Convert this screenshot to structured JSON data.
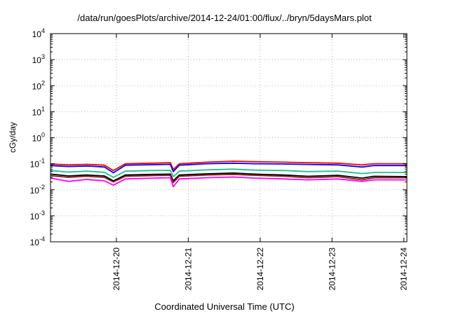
{
  "chart_data": {
    "type": "line",
    "title": "/data/run/goesPlots/archive/2014-12-24/01:00/flux/../bryn/5daysMars.plot",
    "xlabel": "Coordinated Universal Time (UTC)",
    "ylabel": "cGy/day",
    "yscale": "log",
    "ylim": [
      0.0001,
      10000
    ],
    "xlim": [
      "2014-12-19 02:00",
      "2014-12-24 01:00"
    ],
    "y_ticks": [
      {
        "mant": "10",
        "exp": "-4",
        "value": 0.0001
      },
      {
        "mant": "10",
        "exp": "-3",
        "value": 0.001
      },
      {
        "mant": "10",
        "exp": "-2",
        "value": 0.01
      },
      {
        "mant": "10",
        "exp": "-1",
        "value": 0.1
      },
      {
        "mant": "10",
        "exp": "0",
        "value": 1
      },
      {
        "mant": "10",
        "exp": "1",
        "value": 10
      },
      {
        "mant": "10",
        "exp": "2",
        "value": 100
      },
      {
        "mant": "10",
        "exp": "3",
        "value": 1000
      },
      {
        "mant": "10",
        "exp": "4",
        "value": 10000
      }
    ],
    "x_ticks": [
      {
        "label": "2014-12-20",
        "value": "2014-12-20 00:00"
      },
      {
        "label": "2014-12-21",
        "value": "2014-12-21 00:00"
      },
      {
        "label": "2014-12-22",
        "value": "2014-12-22 00:00"
      },
      {
        "label": "2014-12-23",
        "value": "2014-12-23 00:00"
      },
      {
        "label": "2014-12-24",
        "value": "2014-12-24 00:00"
      }
    ],
    "grid": true,
    "legend": "none",
    "series": [
      {
        "color": "#ff0000",
        "values": [
          {
            "x": "2014-12-19 02:00",
            "y": 0.098
          },
          {
            "x": "2014-12-19 08:00",
            "y": 0.09
          },
          {
            "x": "2014-12-19 14:00",
            "y": 0.095
          },
          {
            "x": "2014-12-19 20:00",
            "y": 0.088
          },
          {
            "x": "2014-12-19 23:00",
            "y": 0.055
          },
          {
            "x": "2014-12-20 03:00",
            "y": 0.1
          },
          {
            "x": "2014-12-20 12:00",
            "y": 0.105
          },
          {
            "x": "2014-12-20 18:00",
            "y": 0.11
          },
          {
            "x": "2014-12-20 19:00",
            "y": 0.06
          },
          {
            "x": "2014-12-20 21:00",
            "y": 0.1
          },
          {
            "x": "2014-12-21 06:00",
            "y": 0.115
          },
          {
            "x": "2014-12-21 15:00",
            "y": 0.125
          },
          {
            "x": "2014-12-21 22:00",
            "y": 0.12
          },
          {
            "x": "2014-12-22 08:00",
            "y": 0.115
          },
          {
            "x": "2014-12-22 16:00",
            "y": 0.11
          },
          {
            "x": "2014-12-23 02:00",
            "y": 0.105
          },
          {
            "x": "2014-12-23 10:00",
            "y": 0.09
          },
          {
            "x": "2014-12-23 14:00",
            "y": 0.1
          },
          {
            "x": "2014-12-24 01:00",
            "y": 0.1
          }
        ]
      },
      {
        "color": "#0000ff",
        "values": [
          {
            "x": "2014-12-19 02:00",
            "y": 0.085
          },
          {
            "x": "2014-12-19 08:00",
            "y": 0.078
          },
          {
            "x": "2014-12-19 14:00",
            "y": 0.082
          },
          {
            "x": "2014-12-19 20:00",
            "y": 0.075
          },
          {
            "x": "2014-12-19 23:00",
            "y": 0.045
          },
          {
            "x": "2014-12-20 03:00",
            "y": 0.088
          },
          {
            "x": "2014-12-20 12:00",
            "y": 0.092
          },
          {
            "x": "2014-12-20 18:00",
            "y": 0.095
          },
          {
            "x": "2014-12-20 19:00",
            "y": 0.05
          },
          {
            "x": "2014-12-20 21:00",
            "y": 0.088
          },
          {
            "x": "2014-12-21 06:00",
            "y": 0.1
          },
          {
            "x": "2014-12-21 15:00",
            "y": 0.105
          },
          {
            "x": "2014-12-21 22:00",
            "y": 0.1
          },
          {
            "x": "2014-12-22 08:00",
            "y": 0.098
          },
          {
            "x": "2014-12-22 16:00",
            "y": 0.094
          },
          {
            "x": "2014-12-23 02:00",
            "y": 0.09
          },
          {
            "x": "2014-12-23 10:00",
            "y": 0.075
          },
          {
            "x": "2014-12-23 14:00",
            "y": 0.085
          },
          {
            "x": "2014-12-24 01:00",
            "y": 0.085
          }
        ]
      },
      {
        "color": "#1fbf8f",
        "values": [
          {
            "x": "2014-12-19 02:00",
            "y": 0.055
          },
          {
            "x": "2014-12-19 08:00",
            "y": 0.048
          },
          {
            "x": "2014-12-19 14:00",
            "y": 0.052
          },
          {
            "x": "2014-12-19 20:00",
            "y": 0.047
          },
          {
            "x": "2014-12-19 23:00",
            "y": 0.03
          },
          {
            "x": "2014-12-20 03:00",
            "y": 0.052
          },
          {
            "x": "2014-12-20 12:00",
            "y": 0.055
          },
          {
            "x": "2014-12-20 18:00",
            "y": 0.056
          },
          {
            "x": "2014-12-20 19:00",
            "y": 0.032
          },
          {
            "x": "2014-12-20 21:00",
            "y": 0.052
          },
          {
            "x": "2014-12-21 06:00",
            "y": 0.058
          },
          {
            "x": "2014-12-21 15:00",
            "y": 0.062
          },
          {
            "x": "2014-12-21 22:00",
            "y": 0.057
          },
          {
            "x": "2014-12-22 08:00",
            "y": 0.055
          },
          {
            "x": "2014-12-22 16:00",
            "y": 0.05
          },
          {
            "x": "2014-12-23 02:00",
            "y": 0.052
          },
          {
            "x": "2014-12-23 10:00",
            "y": 0.042
          },
          {
            "x": "2014-12-23 14:00",
            "y": 0.046
          },
          {
            "x": "2014-12-24 01:00",
            "y": 0.046
          }
        ]
      },
      {
        "color": "#000000",
        "values": [
          {
            "x": "2014-12-19 02:00",
            "y": 0.04
          },
          {
            "x": "2014-12-19 08:00",
            "y": 0.034
          },
          {
            "x": "2014-12-19 14:00",
            "y": 0.037
          },
          {
            "x": "2014-12-19 20:00",
            "y": 0.034
          },
          {
            "x": "2014-12-19 23:00",
            "y": 0.022
          },
          {
            "x": "2014-12-20 03:00",
            "y": 0.037
          },
          {
            "x": "2014-12-20 12:00",
            "y": 0.039
          },
          {
            "x": "2014-12-20 18:00",
            "y": 0.04
          },
          {
            "x": "2014-12-20 19:00",
            "y": 0.022
          },
          {
            "x": "2014-12-20 21:00",
            "y": 0.037
          },
          {
            "x": "2014-12-21 06:00",
            "y": 0.041
          },
          {
            "x": "2014-12-21 15:00",
            "y": 0.044
          },
          {
            "x": "2014-12-21 22:00",
            "y": 0.04
          },
          {
            "x": "2014-12-22 08:00",
            "y": 0.037
          },
          {
            "x": "2014-12-22 16:00",
            "y": 0.033
          },
          {
            "x": "2014-12-23 02:00",
            "y": 0.036
          },
          {
            "x": "2014-12-23 10:00",
            "y": 0.028
          },
          {
            "x": "2014-12-23 14:00",
            "y": 0.033
          },
          {
            "x": "2014-12-24 01:00",
            "y": 0.032
          }
        ]
      },
      {
        "color": "#8b1a1a",
        "values": [
          {
            "x": "2014-12-19 02:00",
            "y": 0.035
          },
          {
            "x": "2014-12-19 08:00",
            "y": 0.03
          },
          {
            "x": "2014-12-19 14:00",
            "y": 0.033
          },
          {
            "x": "2014-12-19 20:00",
            "y": 0.03
          },
          {
            "x": "2014-12-19 23:00",
            "y": 0.02
          },
          {
            "x": "2014-12-20 03:00",
            "y": 0.033
          },
          {
            "x": "2014-12-20 12:00",
            "y": 0.035
          },
          {
            "x": "2014-12-20 18:00",
            "y": 0.036
          },
          {
            "x": "2014-12-20 19:00",
            "y": 0.019
          },
          {
            "x": "2014-12-20 21:00",
            "y": 0.033
          },
          {
            "x": "2014-12-21 06:00",
            "y": 0.037
          },
          {
            "x": "2014-12-21 15:00",
            "y": 0.039
          },
          {
            "x": "2014-12-21 22:00",
            "y": 0.036
          },
          {
            "x": "2014-12-22 08:00",
            "y": 0.033
          },
          {
            "x": "2014-12-22 16:00",
            "y": 0.029
          },
          {
            "x": "2014-12-23 02:00",
            "y": 0.032
          },
          {
            "x": "2014-12-23 10:00",
            "y": 0.024
          },
          {
            "x": "2014-12-23 14:00",
            "y": 0.029
          },
          {
            "x": "2014-12-24 01:00",
            "y": 0.029
          }
        ]
      },
      {
        "color": "#ff00ff",
        "values": [
          {
            "x": "2014-12-19 02:00",
            "y": 0.028
          },
          {
            "x": "2014-12-19 08:00",
            "y": 0.021
          },
          {
            "x": "2014-12-19 14:00",
            "y": 0.025
          },
          {
            "x": "2014-12-19 20:00",
            "y": 0.022
          },
          {
            "x": "2014-12-19 23:00",
            "y": 0.015
          },
          {
            "x": "2014-12-20 03:00",
            "y": 0.026
          },
          {
            "x": "2014-12-20 12:00",
            "y": 0.028
          },
          {
            "x": "2014-12-20 18:00",
            "y": 0.029
          },
          {
            "x": "2014-12-20 19:00",
            "y": 0.013
          },
          {
            "x": "2014-12-20 21:00",
            "y": 0.026
          },
          {
            "x": "2014-12-21 06:00",
            "y": 0.029
          },
          {
            "x": "2014-12-21 15:00",
            "y": 0.031
          },
          {
            "x": "2014-12-21 22:00",
            "y": 0.028
          },
          {
            "x": "2014-12-22 08:00",
            "y": 0.026
          },
          {
            "x": "2014-12-22 16:00",
            "y": 0.024
          },
          {
            "x": "2014-12-23 02:00",
            "y": 0.026
          },
          {
            "x": "2014-12-23 10:00",
            "y": 0.021
          },
          {
            "x": "2014-12-23 14:00",
            "y": 0.024
          },
          {
            "x": "2014-12-24 01:00",
            "y": 0.024
          }
        ]
      }
    ]
  }
}
